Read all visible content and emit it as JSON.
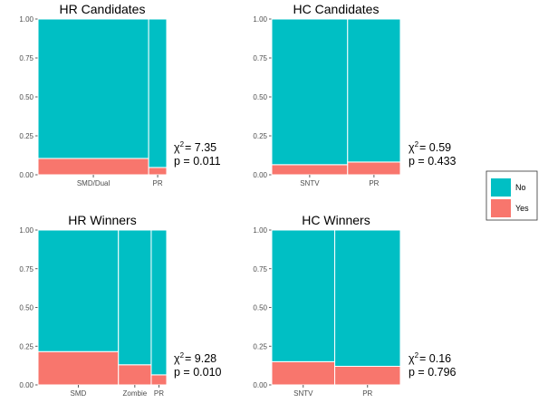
{
  "chart_data": [
    {
      "type": "mosaic",
      "title": "HR Candidates",
      "categories": [
        "SMD/Dual",
        "PR"
      ],
      "widths": [
        0.86,
        0.14
      ],
      "series": [
        {
          "name": "No",
          "values": [
            0.895,
            0.953
          ]
        },
        {
          "name": "Yes",
          "values": [
            0.105,
            0.047
          ]
        }
      ],
      "ylim": [
        0,
        1
      ],
      "yticks": [
        "0.00",
        "0.25",
        "0.50",
        "0.75",
        "1.00"
      ],
      "stat": {
        "chi_label": "χ",
        "sup": "2",
        "chi": "= 7.35",
        "p": "p = 0.011"
      }
    },
    {
      "type": "mosaic",
      "title": "HC Candidates",
      "categories": [
        "SNTV",
        "PR"
      ],
      "widths": [
        0.59,
        0.41
      ],
      "series": [
        {
          "name": "No",
          "values": [
            0.935,
            0.918
          ]
        },
        {
          "name": "Yes",
          "values": [
            0.065,
            0.082
          ]
        }
      ],
      "ylim": [
        0,
        1
      ],
      "yticks": [
        "0.00",
        "0.25",
        "0.50",
        "0.75",
        "1.00"
      ],
      "stat": {
        "chi_label": "χ",
        "sup": "2",
        "chi": "= 0.59",
        "p": "p = 0.433"
      }
    },
    {
      "type": "mosaic",
      "title": "HR Winners",
      "categories": [
        "SMD",
        "Zombie",
        "PR"
      ],
      "widths": [
        0.625,
        0.255,
        0.12
      ],
      "series": [
        {
          "name": "No",
          "values": [
            0.785,
            0.87,
            0.935
          ]
        },
        {
          "name": "Yes",
          "values": [
            0.215,
            0.13,
            0.065
          ]
        }
      ],
      "ylim": [
        0,
        1
      ],
      "yticks": [
        "0.00",
        "0.25",
        "0.50",
        "0.75",
        "1.00"
      ],
      "stat": {
        "chi_label": "χ",
        "sup": "2",
        "chi": "= 9.28",
        "p": "p = 0.010"
      }
    },
    {
      "type": "mosaic",
      "title": "HC Winners",
      "categories": [
        "SNTV",
        "PR"
      ],
      "widths": [
        0.49,
        0.51
      ],
      "series": [
        {
          "name": "No",
          "values": [
            0.85,
            0.88
          ]
        },
        {
          "name": "Yes",
          "values": [
            0.15,
            0.12
          ]
        }
      ],
      "ylim": [
        0,
        1
      ],
      "yticks": [
        "0.00",
        "0.25",
        "0.50",
        "0.75",
        "1.00"
      ],
      "stat": {
        "chi_label": "χ",
        "sup": "2",
        "chi": "= 0.16",
        "p": "p = 0.796"
      }
    }
  ],
  "legend": {
    "placement": "right",
    "items": [
      {
        "label": "No",
        "color": "#00BFC4"
      },
      {
        "label": "Yes",
        "color": "#F8766D"
      }
    ]
  }
}
